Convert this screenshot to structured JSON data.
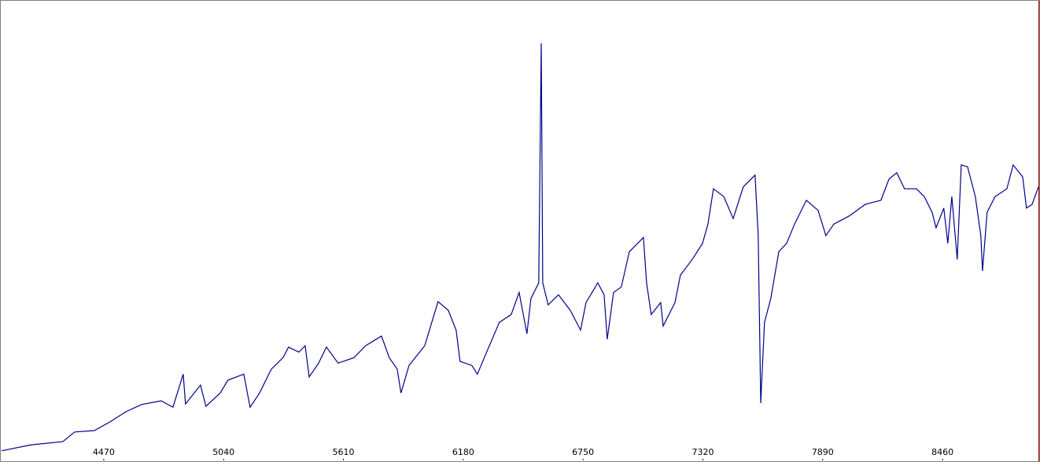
{
  "chart_data": {
    "type": "line",
    "x": [
      3984,
      4126,
      4275,
      4332,
      4425,
      4500,
      4575,
      4650,
      4743,
      4799,
      4848,
      4859,
      4930,
      4956,
      5024,
      5061,
      5136,
      5166,
      5211,
      5267,
      5323,
      5349,
      5398,
      5428,
      5447,
      5492,
      5529,
      5585,
      5660,
      5716,
      5791,
      5828,
      5866,
      5884,
      5922,
      5997,
      6060,
      6109,
      6146,
      6165,
      6221,
      6247,
      6296,
      6352,
      6408,
      6446,
      6483,
      6502,
      6539,
      6551,
      6558,
      6584,
      6633,
      6689,
      6738,
      6764,
      6820,
      6850,
      6865,
      6895,
      6932,
      6970,
      7037,
      7052,
      7074,
      7119,
      7131,
      7187,
      7213,
      7269,
      7318,
      7344,
      7370,
      7419,
      7464,
      7512,
      7568,
      7583,
      7595,
      7613,
      7643,
      7681,
      7718,
      7756,
      7812,
      7868,
      7905,
      7943,
      8017,
      8092,
      8167,
      8205,
      8242,
      8279,
      8336,
      8373,
      8410,
      8429,
      8466,
      8485,
      8504,
      8530,
      8549,
      8579,
      8616,
      8642,
      8650,
      8672,
      8710,
      8766,
      8796,
      8841,
      8859,
      8886,
      8916
    ],
    "series": [
      {
        "color": "#00008b",
        "values": [
          2.1,
          3.4,
          4.1,
          6.2,
          6.5,
          8.4,
          10.6,
          12.2,
          13.0,
          11.6,
          18.8,
          12.3,
          16.4,
          11.8,
          14.7,
          17.5,
          18.8,
          11.6,
          14.7,
          19.9,
          22.4,
          24.7,
          23.6,
          25.0,
          18.2,
          21.2,
          24.7,
          21.2,
          22.4,
          25.0,
          27.1,
          22.4,
          19.9,
          14.7,
          20.7,
          25.0,
          34.6,
          32.7,
          28.4,
          21.6,
          20.7,
          18.8,
          24.1,
          30.1,
          31.8,
          36.6,
          27.6,
          35.3,
          38.7,
          90.9,
          38.7,
          33.9,
          36.1,
          32.7,
          28.4,
          34.4,
          38.7,
          36.1,
          26.4,
          36.6,
          37.8,
          45.5,
          48.6,
          38.7,
          31.8,
          34.4,
          29.3,
          34.4,
          40.4,
          43.8,
          47.3,
          51.5,
          59.2,
          57.5,
          52.7,
          59.6,
          62.2,
          49.0,
          12.5,
          30.1,
          35.3,
          45.5,
          47.3,
          51.5,
          56.7,
          54.5,
          49.0,
          51.5,
          53.3,
          55.8,
          56.7,
          61.3,
          62.7,
          59.2,
          59.2,
          57.5,
          54.1,
          50.7,
          55.0,
          47.3,
          57.5,
          43.8,
          64.4,
          64.0,
          57.5,
          49.0,
          41.3,
          54.1,
          57.5,
          59.2,
          64.4,
          61.8,
          55.0,
          55.8,
          59.6
        ]
      }
    ],
    "xlim": [
      3984,
      8916
    ],
    "xticks": [
      4470,
      5040,
      5610,
      6180,
      6750,
      7320,
      7890,
      8460
    ],
    "ylim": [
      0,
      100
    ]
  }
}
